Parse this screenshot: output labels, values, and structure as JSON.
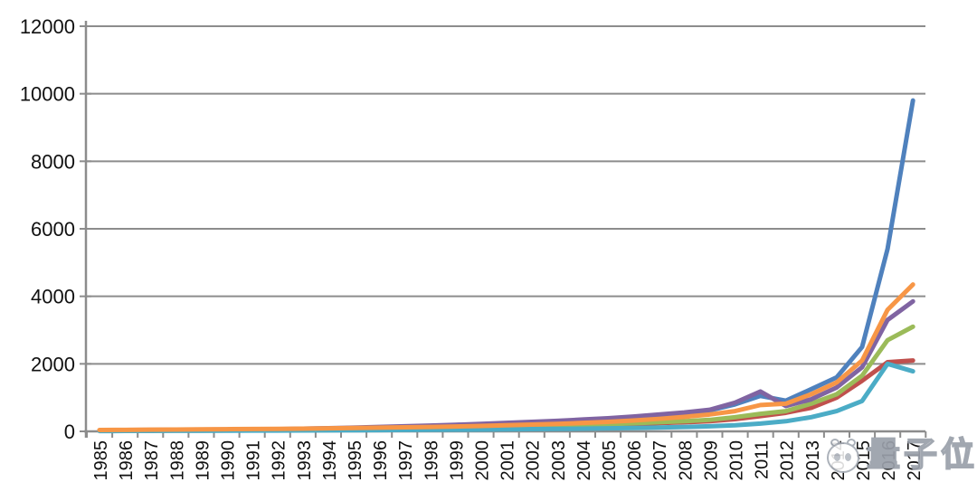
{
  "chart_data": {
    "type": "line",
    "title": "",
    "xlabel": "",
    "ylabel": "",
    "x": [
      1985,
      1986,
      1987,
      1988,
      1989,
      1990,
      1991,
      1992,
      1993,
      1994,
      1995,
      1996,
      1997,
      1998,
      1999,
      2000,
      2001,
      2002,
      2003,
      2004,
      2005,
      2006,
      2007,
      2008,
      2009,
      2010,
      2011,
      2012,
      2013,
      2014,
      2015,
      2016,
      2017
    ],
    "ylim": [
      0,
      12000
    ],
    "yticks": [
      0,
      2000,
      4000,
      6000,
      8000,
      10000,
      12000
    ],
    "grid": true,
    "legend": "none",
    "series": [
      {
        "name": "blue",
        "color": "#4F81BD",
        "values": [
          30,
          35,
          40,
          45,
          50,
          55,
          60,
          65,
          70,
          80,
          90,
          100,
          110,
          120,
          130,
          150,
          170,
          190,
          210,
          240,
          280,
          330,
          400,
          500,
          620,
          800,
          1050,
          910,
          1250,
          1600,
          2500,
          5400,
          9800
        ]
      },
      {
        "name": "red",
        "color": "#C0504D",
        "values": [
          35,
          40,
          45,
          48,
          52,
          56,
          60,
          64,
          68,
          74,
          80,
          88,
          96,
          105,
          115,
          125,
          138,
          150,
          165,
          180,
          200,
          220,
          245,
          270,
          300,
          360,
          450,
          550,
          700,
          1000,
          1500,
          2050,
          2100
        ]
      },
      {
        "name": "green",
        "color": "#9BBB59",
        "values": [
          25,
          28,
          32,
          36,
          40,
          44,
          48,
          52,
          58,
          65,
          72,
          80,
          90,
          100,
          112,
          125,
          140,
          155,
          170,
          190,
          210,
          240,
          270,
          300,
          340,
          420,
          520,
          600,
          820,
          1100,
          1650,
          2700,
          3100
        ]
      },
      {
        "name": "purple",
        "color": "#8064A2",
        "values": [
          20,
          25,
          30,
          35,
          40,
          45,
          55,
          65,
          80,
          95,
          110,
          130,
          150,
          170,
          195,
          220,
          250,
          280,
          310,
          350,
          390,
          440,
          500,
          560,
          640,
          850,
          1180,
          750,
          950,
          1300,
          1900,
          3300,
          3850
        ]
      },
      {
        "name": "teal",
        "color": "#4BACC6",
        "values": [
          10,
          12,
          14,
          16,
          18,
          20,
          22,
          25,
          28,
          31,
          35,
          38,
          42,
          46,
          50,
          55,
          60,
          66,
          72,
          80,
          90,
          100,
          115,
          130,
          150,
          180,
          230,
          300,
          420,
          600,
          900,
          2000,
          1780
        ]
      },
      {
        "name": "orange",
        "color": "#F79646",
        "values": [
          40,
          45,
          50,
          55,
          60,
          65,
          70,
          75,
          80,
          90,
          100,
          110,
          120,
          130,
          145,
          160,
          180,
          200,
          220,
          250,
          280,
          320,
          370,
          430,
          500,
          600,
          780,
          820,
          1100,
          1450,
          2100,
          3600,
          4350
        ]
      }
    ],
    "grid_color": "#8c8c8c",
    "axis_color": "#8c8c8c",
    "tick_label_color": "#111111"
  },
  "watermark": {
    "text": "量子位",
    "logo": "qbitai-panda-logo"
  }
}
